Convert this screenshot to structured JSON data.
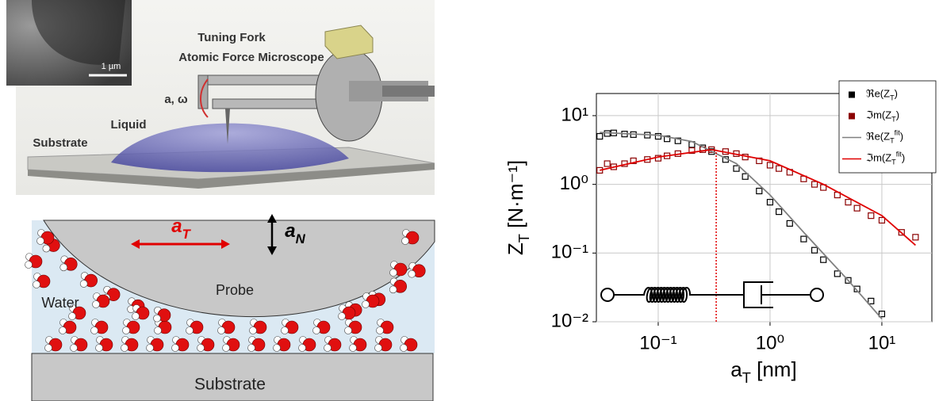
{
  "illustration": {
    "inset_scale": "1 µm",
    "title_line1": "Tuning Fork",
    "title_line2": "Atomic Force Microscope",
    "oscillation": "a, ω",
    "liquid": "Liquid",
    "substrate": "Substrate"
  },
  "schematic": {
    "tangential": "a_T",
    "normal": "a_N",
    "probe": "Probe",
    "water": "Water",
    "substrate": "Substrate"
  },
  "chart_data": {
    "type": "scatter",
    "xlabel": "a_T [nm]",
    "ylabel": "Z_T [N·m⁻¹]",
    "xscale": "log",
    "yscale": "log",
    "xlim": [
      0.028,
      28
    ],
    "ylim": [
      0.01,
      21
    ],
    "xticks": [
      {
        "value": 0.1,
        "label": "10⁻¹"
      },
      {
        "value": 1,
        "label": "10⁰"
      },
      {
        "value": 10,
        "label": "10¹"
      }
    ],
    "yticks": [
      {
        "value": 0.01,
        "label": "10⁻²"
      },
      {
        "value": 0.1,
        "label": "10⁻¹"
      },
      {
        "value": 1,
        "label": "10⁰"
      },
      {
        "value": 10,
        "label": "10¹"
      }
    ],
    "grid": true,
    "legend": "upper right",
    "series": [
      {
        "name": "ℜe(Z_T)",
        "color": "#000000",
        "style": "points",
        "x": [
          0.03,
          0.035,
          0.04,
          0.05,
          0.06,
          0.08,
          0.1,
          0.12,
          0.15,
          0.2,
          0.25,
          0.3,
          0.4,
          0.5,
          0.6,
          0.8,
          1,
          1.2,
          1.5,
          2,
          2.5,
          3,
          4,
          5,
          6,
          8,
          10,
          15,
          20
        ],
        "values": [
          5.0,
          5.5,
          5.6,
          5.4,
          5.3,
          5.2,
          5.0,
          4.6,
          4.3,
          3.8,
          3.4,
          3.0,
          2.3,
          1.7,
          1.3,
          0.8,
          0.55,
          0.4,
          0.27,
          0.16,
          0.11,
          0.08,
          0.05,
          0.04,
          0.03,
          0.02,
          0.013,
          null,
          null
        ]
      },
      {
        "name": "ℑm(Z_T)",
        "color": "#8b0000",
        "style": "points",
        "x": [
          0.03,
          0.035,
          0.04,
          0.05,
          0.06,
          0.08,
          0.1,
          0.12,
          0.15,
          0.2,
          0.25,
          0.3,
          0.4,
          0.5,
          0.6,
          0.8,
          1,
          1.2,
          1.5,
          2,
          2.5,
          3,
          4,
          5,
          6,
          8,
          10,
          15,
          20
        ],
        "values": [
          1.6,
          2.0,
          1.8,
          2.0,
          2.2,
          2.3,
          2.4,
          2.6,
          2.8,
          3.1,
          3.2,
          3.2,
          3.0,
          2.8,
          2.5,
          2.2,
          1.9,
          1.7,
          1.5,
          1.2,
          1.0,
          0.9,
          0.7,
          0.55,
          0.45,
          0.35,
          0.3,
          0.2,
          0.17
        ]
      },
      {
        "name": "ℜe(Z_T^{fit})",
        "color": "#808080",
        "style": "line",
        "x": [
          0.03,
          0.1,
          0.2,
          0.5,
          1,
          2,
          5,
          10
        ],
        "values": [
          5.7,
          5.2,
          4.2,
          2.0,
          0.7,
          0.2,
          0.04,
          0.011
        ]
      },
      {
        "name": "ℑm(Z_T^{fit})",
        "color": "#e00000",
        "style": "line",
        "x": [
          0.03,
          0.1,
          0.3,
          1,
          3,
          10,
          20
        ],
        "values": [
          1.6,
          2.5,
          3.2,
          2.2,
          1.0,
          0.35,
          0.13
        ]
      }
    ],
    "vline": {
      "x": 0.33,
      "y": 3.2,
      "color": "#e00000"
    }
  }
}
